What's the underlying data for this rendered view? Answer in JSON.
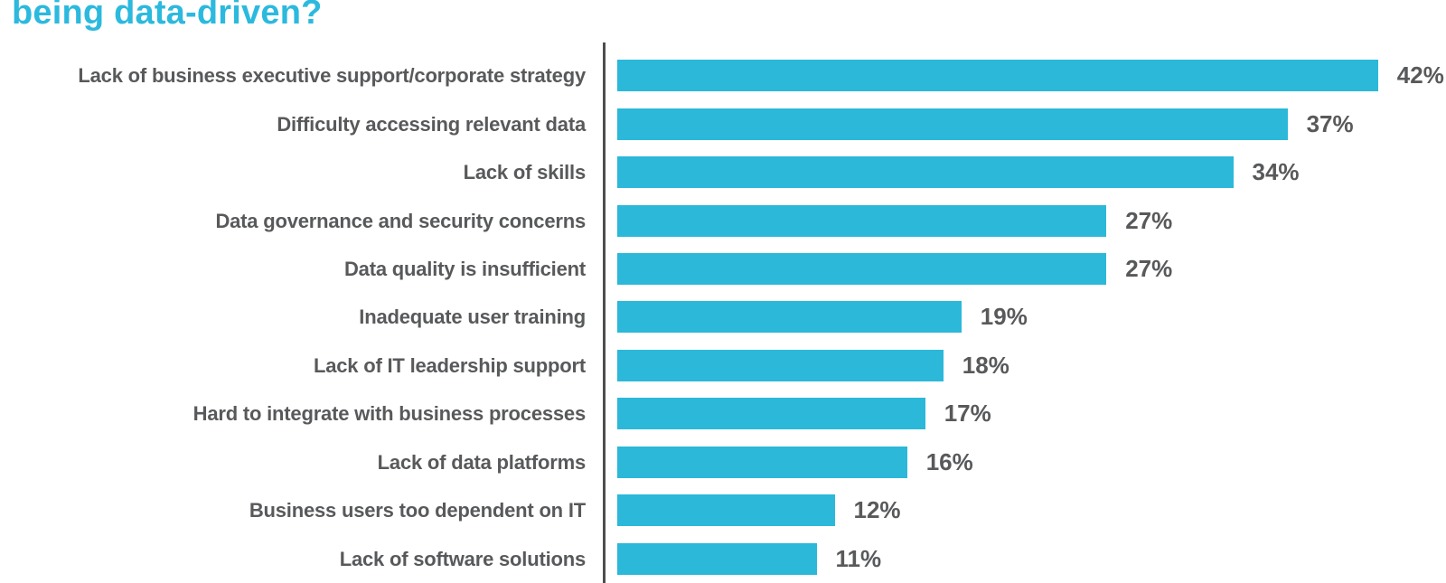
{
  "title": {
    "text": "being data-driven?"
  },
  "colors": {
    "background": "#ffffff",
    "bar": "#2bb8d9",
    "title": "#2cb9de",
    "label_text": "#58595b",
    "axis_line": "#4d4e50"
  },
  "chart_data": {
    "type": "bar",
    "orientation": "horizontal",
    "title": "being data-driven?",
    "categories": [
      "Lack of business executive support/corporate strategy",
      "Difficulty accessing relevant data",
      "Lack of skills",
      "Data governance and security concerns",
      "Data quality is insufficient",
      "Inadequate user training",
      "Lack of IT leadership support",
      "Hard to integrate with business processes",
      "Lack of data platforms",
      "Business users too dependent on IT",
      "Lack of software solutions"
    ],
    "values": [
      42,
      37,
      34,
      27,
      27,
      19,
      18,
      17,
      16,
      12,
      11
    ],
    "value_labels": [
      "42%",
      "37%",
      "34%",
      "27%",
      "27%",
      "19%",
      "18%",
      "17%",
      "16%",
      "12%",
      "11%"
    ],
    "value_suffix": "%",
    "xlim": [
      0,
      45.7
    ],
    "grid": false,
    "legend": false,
    "bars_sorted_descending": true
  }
}
